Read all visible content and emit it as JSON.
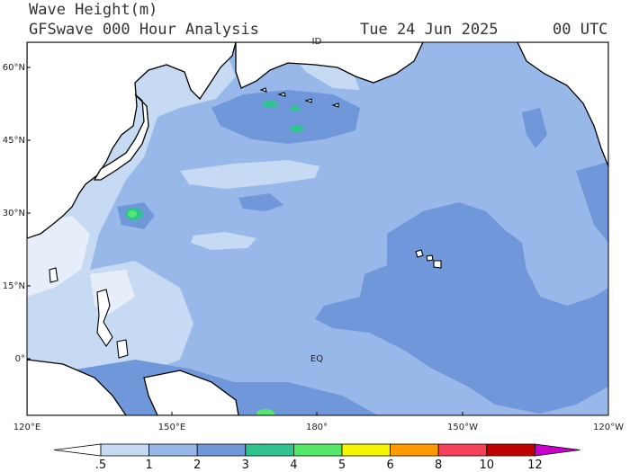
{
  "header": {
    "title": "Wave Height(m)",
    "product": "GFSwave 000 Hour Analysis",
    "date": "Tue 24 Jun 2025",
    "time": "00 UTC"
  },
  "map": {
    "lat_labels": [
      "60°N",
      "45°N",
      "30°N",
      "15°N",
      "0°"
    ],
    "lon_labels": [
      "120°E",
      "150°E",
      "180°",
      "150°W",
      "120°W"
    ],
    "place_labels": [
      "ID",
      "EQ"
    ]
  },
  "colorbar": {
    "labels": [
      ".5",
      "1",
      "2",
      "3",
      "4",
      "5",
      "6",
      "8",
      "10",
      "12"
    ]
  }
}
